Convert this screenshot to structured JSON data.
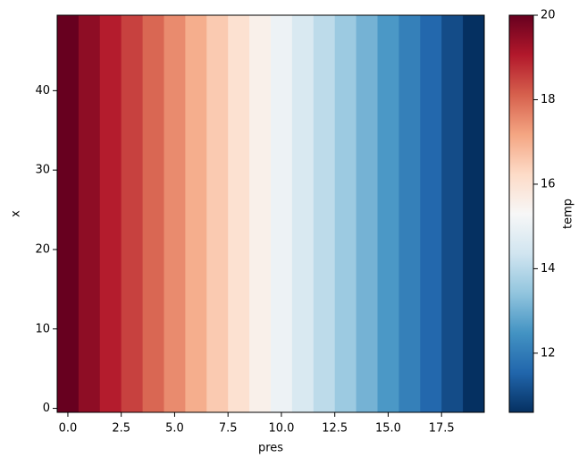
{
  "chart_data": {
    "type": "heatmap",
    "xlabel": "pres",
    "ylabel": "x",
    "colorbar_label": "temp",
    "x": [
      0,
      1,
      2,
      3,
      4,
      5,
      6,
      7,
      8,
      9,
      10,
      11,
      12,
      13,
      14,
      15,
      16,
      17,
      18,
      19
    ],
    "values": [
      20,
      19.51,
      19.01,
      18.52,
      18.02,
      17.53,
      17.03,
      16.54,
      16.04,
      15.55,
      15.05,
      14.56,
      14.06,
      13.57,
      13.07,
      12.58,
      12.08,
      11.59,
      11.09,
      10.6
    ],
    "xlim": [
      -0.5,
      19.5
    ],
    "xticks": [
      {
        "value": 0,
        "label": "0.0"
      },
      {
        "value": 2.5,
        "label": "2.5"
      },
      {
        "value": 5,
        "label": "5.0"
      },
      {
        "value": 7.5,
        "label": "7.5"
      },
      {
        "value": 10,
        "label": "10.0"
      },
      {
        "value": 12.5,
        "label": "12.5"
      },
      {
        "value": 15,
        "label": "15.0"
      },
      {
        "value": 17.5,
        "label": "17.5"
      }
    ],
    "ylim": [
      -0.5,
      49.5
    ],
    "yticks": [
      0,
      10,
      20,
      30,
      40
    ],
    "clim": [
      10.6,
      20
    ],
    "cticks": [
      12,
      14,
      16,
      18,
      20
    ],
    "cmap": [
      "#053061",
      "#2166ac",
      "#4393c3",
      "#92c5de",
      "#d1e5f0",
      "#f7f7f7",
      "#fddbc7",
      "#f4a582",
      "#d6604d",
      "#b2182b",
      "#67001f"
    ]
  }
}
